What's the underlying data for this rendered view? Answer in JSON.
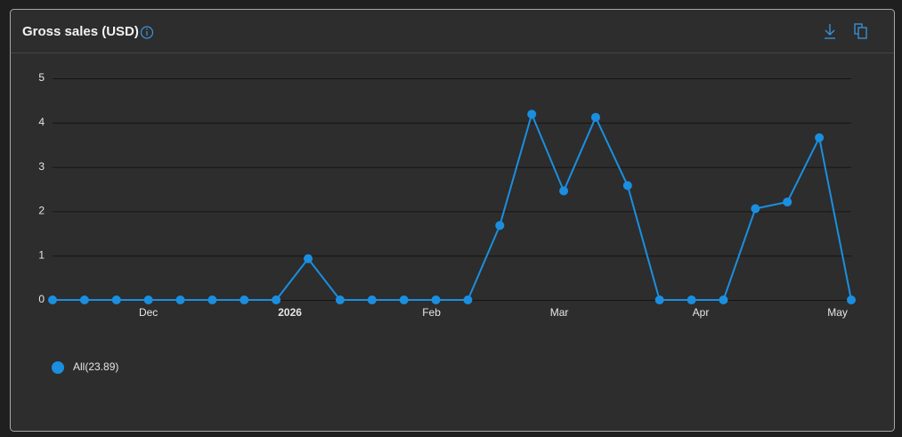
{
  "chart_data": {
    "type": "line",
    "title": "Gross sales (USD)",
    "x": [
      0,
      1,
      2,
      3,
      4,
      5,
      6,
      7,
      8,
      9,
      10,
      11,
      12,
      13,
      14,
      15,
      16,
      17,
      18,
      19,
      20,
      21,
      22,
      23,
      24,
      25
    ],
    "xlim": [
      0,
      25
    ],
    "xticks": [
      {
        "value": 3,
        "label": "Dec"
      },
      {
        "value": 7.43,
        "label": "2026"
      },
      {
        "value": 11.86,
        "label": "Feb"
      },
      {
        "value": 15.86,
        "label": "Mar"
      },
      {
        "value": 20.29,
        "label": "Apr"
      },
      {
        "value": 24.57,
        "label": "May"
      }
    ],
    "series": [
      {
        "name": "All(23.89)",
        "color": "#1a8fe0",
        "values": [
          0,
          0,
          0,
          0,
          0,
          0,
          0,
          0,
          0.93,
          0,
          0,
          0,
          0,
          0,
          1.68,
          4.19,
          2.46,
          4.12,
          2.58,
          0,
          0,
          0,
          2.06,
          2.21,
          3.66,
          0
        ]
      }
    ],
    "ylim": [
      0,
      5
    ],
    "yticks": [
      0,
      1,
      2,
      3,
      4,
      5
    ],
    "grid": true
  }
}
